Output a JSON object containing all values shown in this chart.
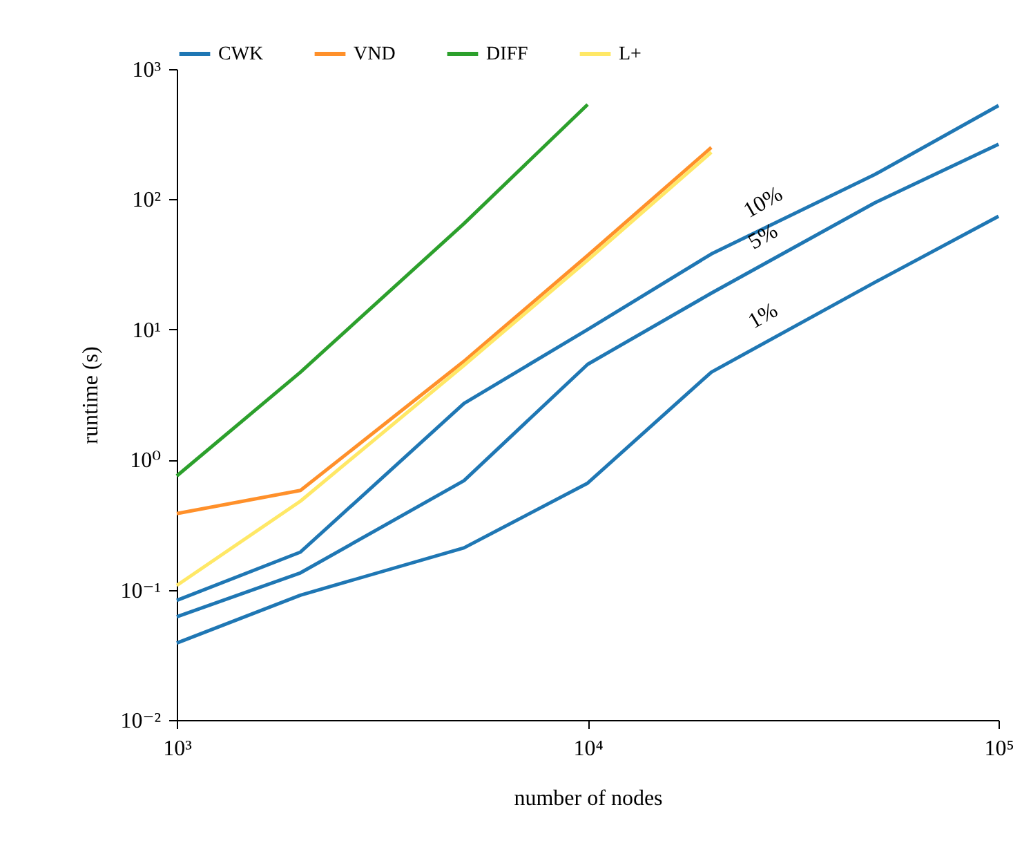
{
  "chart_data": {
    "type": "line",
    "xlabel": "number of nodes",
    "ylabel": "runtime (s)",
    "log": "xy",
    "grid": false,
    "legend": "top",
    "line_style": "solid",
    "marker": "none",
    "xlim": [
      1000,
      100000
    ],
    "xticks": [
      {
        "value": 1000,
        "label": "10³"
      },
      {
        "value": 10000,
        "label": "10⁴"
      },
      {
        "value": 100000,
        "label": "10⁵"
      }
    ],
    "ylim": [
      0.01,
      1000
    ],
    "yticks": [
      {
        "value": 0.01,
        "label": "10⁻²"
      },
      {
        "value": 0.1,
        "label": "10⁻¹"
      },
      {
        "value": 1,
        "label": "10⁰"
      },
      {
        "value": 10,
        "label": "10¹"
      },
      {
        "value": 100,
        "label": "10²"
      },
      {
        "value": 1000,
        "label": "10³"
      }
    ],
    "x": [
      1000,
      2000,
      5000,
      10000,
      20000,
      50000,
      100000
    ],
    "series": [
      {
        "name": "CWK",
        "color": "#1f77b4",
        "values": [
          0.083,
          0.195,
          2.7,
          10,
          38,
          155,
          525
        ]
      },
      {
        "color": "#1f77b4",
        "values": [
          0.062,
          0.135,
          0.69,
          5.4,
          19,
          94,
          265
        ]
      },
      {
        "color": "#1f77b4",
        "values": [
          0.039,
          0.091,
          0.21,
          0.66,
          4.7,
          23,
          74
        ]
      },
      {
        "name": "VND",
        "color": "#ff902a",
        "values": [
          0.385,
          0.58,
          5.7,
          37,
          250,
          null,
          null
        ]
      },
      {
        "name": "DIFF",
        "color": "#2ca02c",
        "values": [
          0.75,
          4.7,
          65,
          535,
          null,
          null,
          null
        ]
      },
      {
        "name": "L+",
        "color": "#ffe866",
        "values": [
          0.108,
          0.48,
          5.3,
          34,
          230,
          null,
          null
        ]
      }
    ],
    "annotations": [
      "10%",
      "5%",
      "1%"
    ]
  }
}
